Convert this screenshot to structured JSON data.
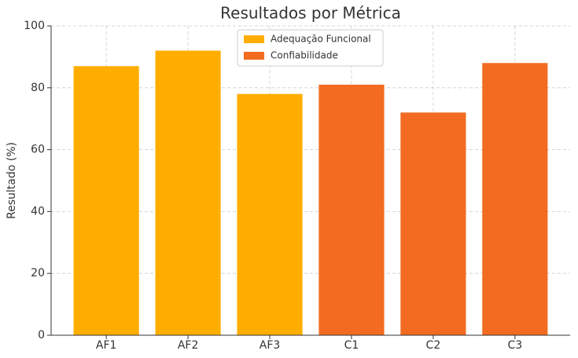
{
  "chart_data": {
    "type": "bar",
    "title": "Resultados por Métrica",
    "y_label": "Resultado (%)",
    "categories": [
      "AF1",
      "AF2",
      "AF3",
      "C1",
      "C2",
      "C3"
    ],
    "series": [
      {
        "name": "Adequação Funcional",
        "color": "#ffae00",
        "values": [
          87,
          92,
          78,
          null,
          null,
          null
        ]
      },
      {
        "name": "Confiabilidade",
        "color": "#f26b21",
        "values": [
          null,
          null,
          null,
          81,
          72,
          88
        ]
      }
    ],
    "ylim": [
      0,
      100
    ],
    "yticks": [
      0,
      20,
      40,
      60,
      80,
      100
    ],
    "grid": true,
    "legend": "upper center"
  }
}
